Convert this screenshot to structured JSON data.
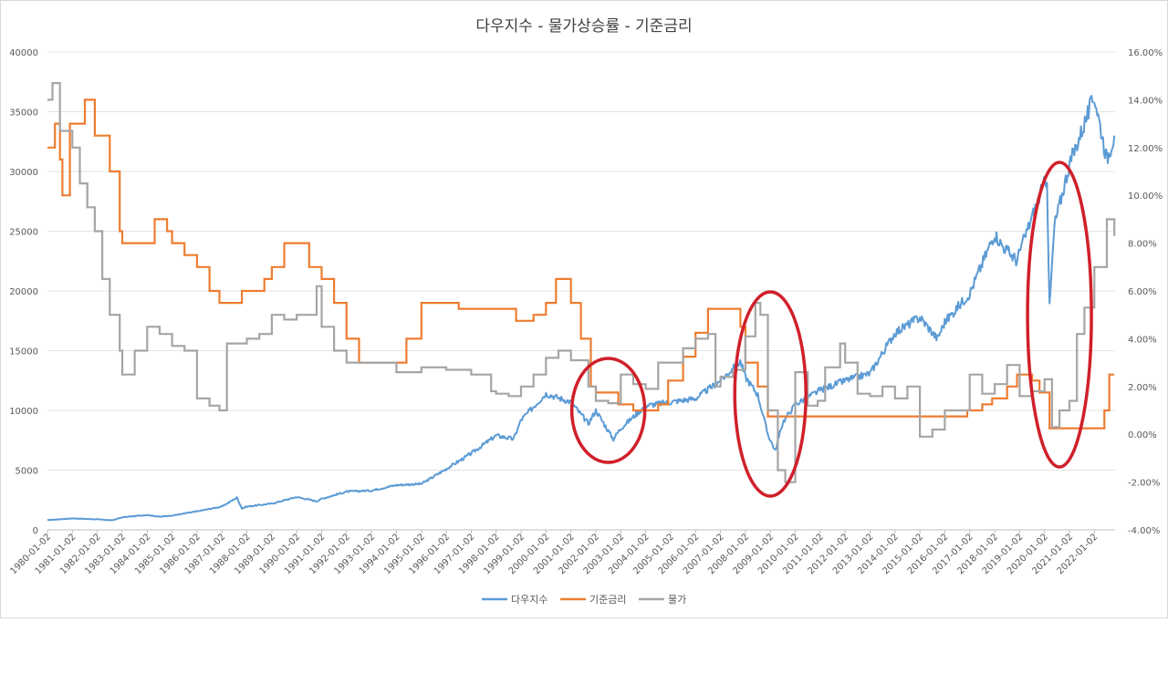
{
  "chart_data": {
    "type": "line",
    "title": "다우지수 - 물가상승률 - 기준금리",
    "x_labels": [
      "1980-01-02",
      "1981-01-02",
      "1982-01-02",
      "1983-01-02",
      "1984-01-02",
      "1985-01-02",
      "1986-01-02",
      "1987-01-02",
      "1988-01-02",
      "1989-01-02",
      "1990-01-02",
      "1991-01-02",
      "1992-01-02",
      "1993-01-02",
      "1994-01-02",
      "1995-01-02",
      "1996-01-02",
      "1997-01-02",
      "1998-01-02",
      "1999-01-02",
      "2000-01-02",
      "2001-01-02",
      "2002-01-02",
      "2003-01-02",
      "2004-01-02",
      "2005-01-02",
      "2006-01-02",
      "2007-01-02",
      "2008-01-02",
      "2009-01-02",
      "2010-01-02",
      "2011-01-02",
      "2012-01-02",
      "2013-01-02",
      "2014-01-02",
      "2015-01-02",
      "2016-01-02",
      "2017-01-02",
      "2018-01-02",
      "2019-01-02",
      "2020-01-02",
      "2021-01-02",
      "2022-01-02"
    ],
    "y_left": {
      "ticks": [
        "0",
        "5000",
        "10000",
        "15000",
        "20000",
        "25000",
        "30000",
        "35000",
        "40000"
      ],
      "range": [
        0,
        40000
      ]
    },
    "y_right": {
      "ticks": [
        "-4.00%",
        "-2.00%",
        "0.00%",
        "2.00%",
        "4.00%",
        "6.00%",
        "8.00%",
        "10.00%",
        "12.00%",
        "14.00%",
        "16.00%"
      ],
      "range": [
        -4,
        16
      ]
    },
    "grid": true,
    "legend_position": "bottom",
    "series": [
      {
        "name": "다우지수",
        "axis": "left",
        "color": "#5b9bd5",
        "points": [
          [
            1980.0,
            820
          ],
          [
            1981.0,
            960
          ],
          [
            1982.0,
            880
          ],
          [
            1982.6,
            800
          ],
          [
            1983.0,
            1050
          ],
          [
            1984.0,
            1250
          ],
          [
            1984.5,
            1100
          ],
          [
            1985.0,
            1200
          ],
          [
            1986.0,
            1550
          ],
          [
            1987.0,
            1950
          ],
          [
            1987.6,
            2700
          ],
          [
            1987.8,
            1800
          ],
          [
            1988.0,
            1950
          ],
          [
            1989.0,
            2200
          ],
          [
            1990.0,
            2750
          ],
          [
            1990.8,
            2400
          ],
          [
            1991.0,
            2600
          ],
          [
            1992.0,
            3200
          ],
          [
            1993.0,
            3300
          ],
          [
            1994.0,
            3750
          ],
          [
            1995.0,
            3850
          ],
          [
            1996.0,
            5100
          ],
          [
            1997.0,
            6400
          ],
          [
            1998.0,
            7900
          ],
          [
            1998.7,
            7600
          ],
          [
            1999.0,
            9200
          ],
          [
            2000.0,
            11400
          ],
          [
            2001.0,
            10700
          ],
          [
            2001.7,
            8900
          ],
          [
            2002.0,
            10000
          ],
          [
            2002.7,
            7600
          ],
          [
            2003.0,
            8500
          ],
          [
            2004.0,
            10400
          ],
          [
            2005.0,
            10700
          ],
          [
            2006.0,
            11000
          ],
          [
            2007.0,
            12500
          ],
          [
            2007.8,
            14100
          ],
          [
            2008.0,
            12800
          ],
          [
            2008.5,
            11300
          ],
          [
            2008.9,
            8000
          ],
          [
            2009.2,
            6600
          ],
          [
            2009.5,
            9000
          ],
          [
            2010.0,
            10500
          ],
          [
            2011.0,
            11700
          ],
          [
            2012.0,
            12500
          ],
          [
            2013.0,
            13100
          ],
          [
            2014.0,
            16500
          ],
          [
            2015.0,
            17800
          ],
          [
            2015.7,
            16000
          ],
          [
            2016.0,
            17400
          ],
          [
            2017.0,
            19800
          ],
          [
            2018.0,
            24800
          ],
          [
            2018.3,
            23800
          ],
          [
            2018.9,
            22500
          ],
          [
            2019.0,
            23300
          ],
          [
            2019.9,
            28500
          ],
          [
            2020.1,
            29500
          ],
          [
            2020.2,
            18600
          ],
          [
            2020.4,
            25500
          ],
          [
            2021.0,
            30600
          ],
          [
            2022.0,
            36300
          ],
          [
            2022.5,
            31000
          ],
          [
            2022.8,
            33000
          ]
        ]
      },
      {
        "name": "기준금리",
        "axis": "right",
        "color": "#ed7d31",
        "points": [
          [
            1980.0,
            12.0
          ],
          [
            1980.3,
            13.0
          ],
          [
            1980.5,
            11.5
          ],
          [
            1980.6,
            10.0
          ],
          [
            1980.9,
            13.0
          ],
          [
            1981.3,
            13.0
          ],
          [
            1981.5,
            14.0
          ],
          [
            1981.9,
            12.5
          ],
          [
            1982.5,
            11.0
          ],
          [
            1982.9,
            8.5
          ],
          [
            1983.0,
            8.0
          ],
          [
            1984.0,
            8.0
          ],
          [
            1984.3,
            9.0
          ],
          [
            1984.8,
            8.5
          ],
          [
            1985.0,
            8.0
          ],
          [
            1985.5,
            7.5
          ],
          [
            1986.0,
            7.0
          ],
          [
            1986.5,
            6.0
          ],
          [
            1986.9,
            5.5
          ],
          [
            1987.5,
            5.5
          ],
          [
            1987.8,
            6.0
          ],
          [
            1988.5,
            6.0
          ],
          [
            1988.7,
            6.5
          ],
          [
            1989.0,
            7.0
          ],
          [
            1989.5,
            8.0
          ],
          [
            1990.0,
            8.0
          ],
          [
            1990.5,
            7.0
          ],
          [
            1991.0,
            6.5
          ],
          [
            1991.5,
            5.5
          ],
          [
            1992.0,
            4.0
          ],
          [
            1992.5,
            3.0
          ],
          [
            1994.0,
            3.0
          ],
          [
            1994.4,
            4.0
          ],
          [
            1995.0,
            5.5
          ],
          [
            1996.0,
            5.5
          ],
          [
            1996.5,
            5.25
          ],
          [
            1998.0,
            5.25
          ],
          [
            1998.8,
            4.75
          ],
          [
            1999.5,
            5.0
          ],
          [
            2000.0,
            5.5
          ],
          [
            2000.4,
            6.5
          ],
          [
            2001.0,
            5.5
          ],
          [
            2001.4,
            4.0
          ],
          [
            2001.8,
            2.0
          ],
          [
            2002.0,
            1.75
          ],
          [
            2002.9,
            1.25
          ],
          [
            2003.5,
            1.0
          ],
          [
            2004.5,
            1.25
          ],
          [
            2004.9,
            2.25
          ],
          [
            2005.5,
            3.25
          ],
          [
            2006.0,
            4.25
          ],
          [
            2006.5,
            5.25
          ],
          [
            2007.5,
            5.25
          ],
          [
            2007.8,
            4.5
          ],
          [
            2008.0,
            3.0
          ],
          [
            2008.5,
            2.0
          ],
          [
            2008.9,
            0.75
          ],
          [
            2009.0,
            0.75
          ],
          [
            2015.9,
            0.75
          ],
          [
            2016.5,
            0.75
          ],
          [
            2016.9,
            1.0
          ],
          [
            2017.5,
            1.25
          ],
          [
            2017.9,
            1.5
          ],
          [
            2018.5,
            2.0
          ],
          [
            2018.9,
            2.5
          ],
          [
            2019.5,
            2.25
          ],
          [
            2019.8,
            1.75
          ],
          [
            2020.2,
            0.25
          ],
          [
            2022.2,
            0.25
          ],
          [
            2022.4,
            1.0
          ],
          [
            2022.6,
            2.5
          ],
          [
            2022.8,
            2.5
          ]
        ]
      },
      {
        "name": "물가",
        "axis": "right",
        "color": "#a5a5a5",
        "points": [
          [
            1980.0,
            14.0
          ],
          [
            1980.2,
            14.7
          ],
          [
            1980.5,
            12.7
          ],
          [
            1981.0,
            12.0
          ],
          [
            1981.3,
            10.5
          ],
          [
            1981.6,
            9.5
          ],
          [
            1981.9,
            8.5
          ],
          [
            1982.2,
            6.5
          ],
          [
            1982.5,
            5.0
          ],
          [
            1982.9,
            3.5
          ],
          [
            1983.0,
            2.5
          ],
          [
            1983.5,
            3.5
          ],
          [
            1984.0,
            4.5
          ],
          [
            1984.5,
            4.2
          ],
          [
            1985.0,
            3.7
          ],
          [
            1985.5,
            3.5
          ],
          [
            1986.0,
            1.5
          ],
          [
            1986.5,
            1.2
          ],
          [
            1986.9,
            1.0
          ],
          [
            1987.2,
            3.8
          ],
          [
            1988.0,
            4.0
          ],
          [
            1988.5,
            4.2
          ],
          [
            1989.0,
            5.0
          ],
          [
            1989.5,
            4.8
          ],
          [
            1990.0,
            5.0
          ],
          [
            1990.8,
            6.2
          ],
          [
            1991.0,
            4.5
          ],
          [
            1991.5,
            3.5
          ],
          [
            1992.0,
            3.0
          ],
          [
            1993.0,
            3.0
          ],
          [
            1994.0,
            2.6
          ],
          [
            1995.0,
            2.8
          ],
          [
            1996.0,
            2.7
          ],
          [
            1997.0,
            2.5
          ],
          [
            1997.8,
            1.8
          ],
          [
            1998.0,
            1.7
          ],
          [
            1998.5,
            1.6
          ],
          [
            1999.0,
            2.0
          ],
          [
            1999.5,
            2.5
          ],
          [
            2000.0,
            3.2
          ],
          [
            2000.5,
            3.5
          ],
          [
            2001.0,
            3.1
          ],
          [
            2001.7,
            2.0
          ],
          [
            2002.0,
            1.4
          ],
          [
            2002.5,
            1.3
          ],
          [
            2003.0,
            2.5
          ],
          [
            2003.5,
            2.1
          ],
          [
            2004.0,
            1.9
          ],
          [
            2004.5,
            3.0
          ],
          [
            2005.0,
            3.0
          ],
          [
            2005.5,
            3.6
          ],
          [
            2006.0,
            4.0
          ],
          [
            2006.5,
            4.2
          ],
          [
            2006.8,
            2.0
          ],
          [
            2007.0,
            2.4
          ],
          [
            2007.5,
            2.7
          ],
          [
            2008.0,
            4.1
          ],
          [
            2008.4,
            5.5
          ],
          [
            2008.6,
            5.0
          ],
          [
            2008.9,
            1.0
          ],
          [
            2009.3,
            -1.5
          ],
          [
            2009.6,
            -2.0
          ],
          [
            2010.0,
            2.6
          ],
          [
            2010.5,
            1.2
          ],
          [
            2010.9,
            1.4
          ],
          [
            2011.2,
            2.8
          ],
          [
            2011.8,
            3.8
          ],
          [
            2012.0,
            3.0
          ],
          [
            2012.5,
            1.7
          ],
          [
            2013.0,
            1.6
          ],
          [
            2013.5,
            2.0
          ],
          [
            2014.0,
            1.5
          ],
          [
            2014.5,
            2.0
          ],
          [
            2015.0,
            -0.1
          ],
          [
            2015.5,
            0.2
          ],
          [
            2016.0,
            1.0
          ],
          [
            2016.5,
            1.0
          ],
          [
            2017.0,
            2.5
          ],
          [
            2017.5,
            1.7
          ],
          [
            2018.0,
            2.1
          ],
          [
            2018.5,
            2.9
          ],
          [
            2019.0,
            1.6
          ],
          [
            2019.5,
            1.8
          ],
          [
            2020.0,
            2.3
          ],
          [
            2020.3,
            0.3
          ],
          [
            2020.6,
            1.0
          ],
          [
            2021.0,
            1.4
          ],
          [
            2021.3,
            4.2
          ],
          [
            2021.6,
            5.3
          ],
          [
            2022.0,
            7.0
          ],
          [
            2022.5,
            9.0
          ],
          [
            2022.8,
            8.3
          ]
        ]
      }
    ]
  }
}
